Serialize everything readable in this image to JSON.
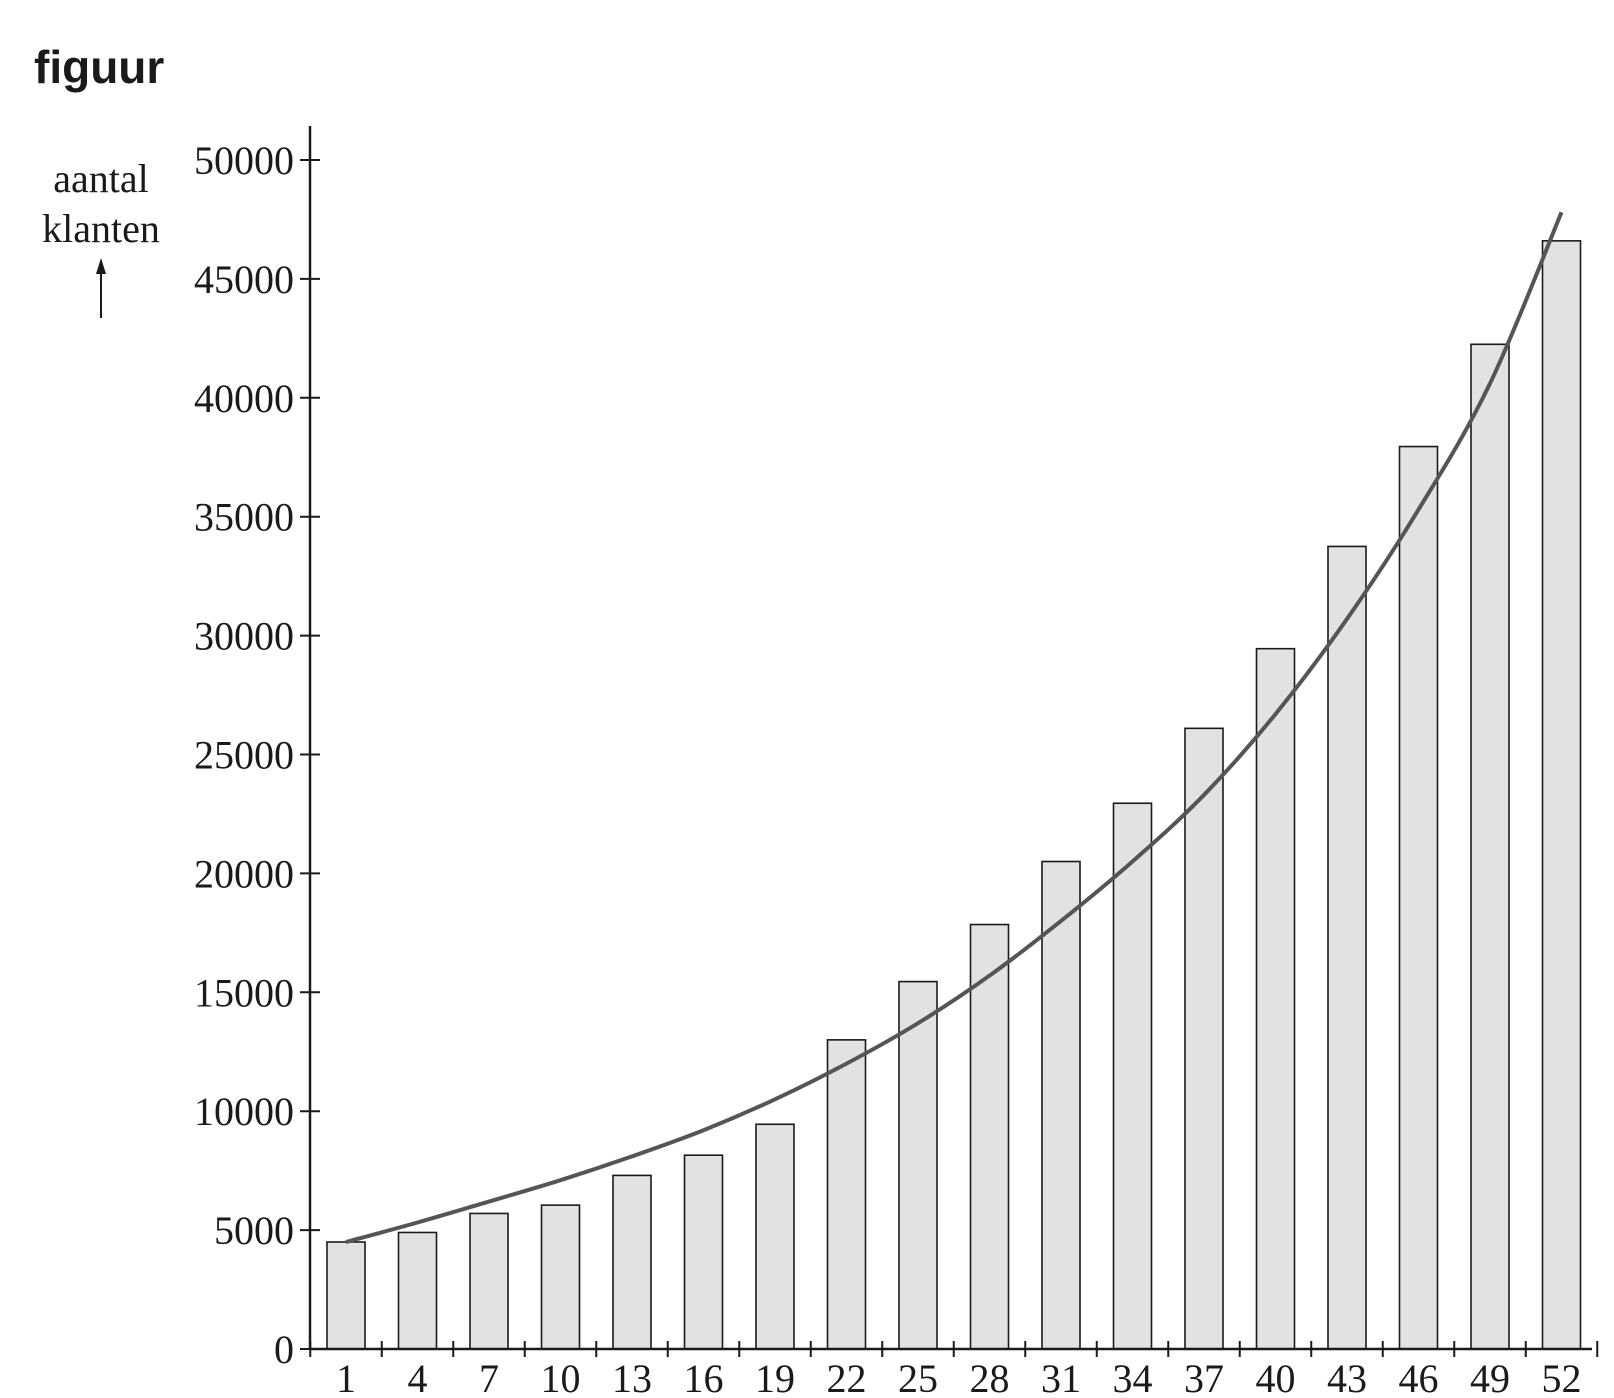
{
  "page": {
    "title": "figuur"
  },
  "chart_data": {
    "type": "bar",
    "title": "figuur",
    "ylabel": [
      "aantal",
      "klanten"
    ],
    "xlabel": "",
    "ylim": [
      0,
      50000
    ],
    "yticks": [
      0,
      5000,
      10000,
      15000,
      20000,
      25000,
      30000,
      35000,
      40000,
      45000,
      50000
    ],
    "categories": [
      "1",
      "4",
      "7",
      "10",
      "13",
      "16",
      "19",
      "22",
      "25",
      "28",
      "31",
      "34",
      "37",
      "40",
      "43",
      "46",
      "49",
      "52"
    ],
    "values": [
      4500,
      4900,
      5700,
      6050,
      7300,
      8150,
      9450,
      13000,
      15450,
      17850,
      20500,
      22950,
      26100,
      29450,
      33750,
      37950,
      42250,
      46600
    ],
    "curve": {
      "type": "line",
      "x": [
        1,
        4,
        7,
        10,
        13,
        16,
        19,
        22,
        25,
        28,
        31,
        34,
        37,
        40,
        43,
        46,
        49,
        52
      ],
      "y": [
        4500,
        5320,
        6200,
        7100,
        8100,
        9200,
        10500,
        12000,
        13700,
        15700,
        18000,
        20500,
        23300,
        26700,
        30700,
        35300,
        40600,
        47800
      ]
    },
    "grid": false,
    "colors": {
      "bar_fill": "#e2e2e2",
      "bar_stroke": "#1a1a1a",
      "curve": "#555555",
      "axis": "#1a1a1a"
    }
  }
}
